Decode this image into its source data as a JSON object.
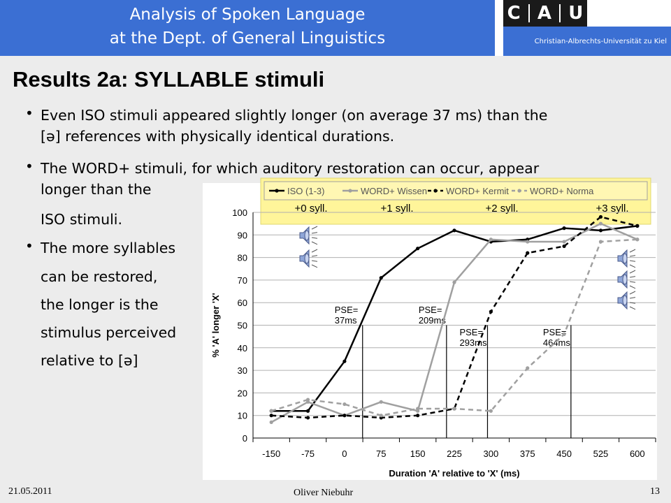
{
  "header": {
    "line1": "Analysis of Spoken Language",
    "line2": "at the Dept. of General Linguistics",
    "logo_letters": [
      "C",
      "A",
      "U"
    ],
    "university": "Christian-Albrechts-Universität zu Kiel"
  },
  "slide": {
    "title": "Results 2a: SYLLABLE stimuli",
    "bullet1_line1": "Even ISO stimuli appeared slightly longer (on average 37 ms) than the",
    "bullet1_line2": "[ə] references with physically identical durations.",
    "bullet2_line1": "The WORD+ stimuli, for which auditory restoration can occur, appear",
    "bullet2_line2": "longer than the",
    "bullet2_line3": "ISO stimuli.",
    "bullet3_lines": [
      "The more syllables",
      "can be restored,",
      "the longer is the",
      "stimulus perceived",
      "relative to [ə]"
    ],
    "syll_labels": [
      "+0 syll.",
      "+1 syll.",
      "+2 syll.",
      "+3 syll."
    ]
  },
  "footer": {
    "date": "21.05.2011",
    "author": "Oliver Niebuhr",
    "page": "13"
  },
  "colors": {
    "header_blue": "#3b6fd3",
    "legend_highlight": "#fff59a",
    "series_iso": "#000000",
    "series_wissen": "#a0a0a0",
    "series_kermit": "#000000",
    "series_norma": "#a0a0a0"
  },
  "chart_data": {
    "type": "line",
    "xlabel": "Duration 'A' relative to 'X' (ms)",
    "ylabel": "% 'A' longer 'X'",
    "categories": [
      "-150",
      "-75",
      "0",
      "75",
      "150",
      "225",
      "300",
      "375",
      "450",
      "525",
      "600"
    ],
    "ylim": [
      0,
      100
    ],
    "yticks": [
      "0",
      "10",
      "20",
      "30",
      "40",
      "50",
      "60",
      "70",
      "80",
      "90",
      "100"
    ],
    "grid": true,
    "legend_position": "top",
    "series": [
      {
        "name": "ISO (1-3)",
        "color": "#000000",
        "dash": "solid",
        "values": [
          12,
          12,
          34,
          71,
          84,
          92,
          87,
          88,
          93,
          92,
          94
        ]
      },
      {
        "name": "WORD+ Wissen",
        "color": "#a0a0a0",
        "dash": "solid",
        "values": [
          7,
          16,
          10,
          16,
          12,
          69,
          88,
          87,
          87,
          95,
          88
        ]
      },
      {
        "name": "WORD+ Kermit",
        "color": "#000000",
        "dash": "dashed",
        "values": [
          10,
          9,
          10,
          9,
          10,
          13,
          56,
          82,
          85,
          98,
          94
        ]
      },
      {
        "name": "WORD+ Norma",
        "color": "#a0a0a0",
        "dash": "dashed",
        "values": [
          12,
          17,
          15,
          10,
          13,
          13,
          12,
          31,
          46,
          87,
          88
        ]
      }
    ],
    "pse_labels": [
      {
        "line1": "PSE=",
        "line2": "37ms",
        "x_value": 37
      },
      {
        "line1": "PSE=",
        "line2": "209ms",
        "x_value": 209
      },
      {
        "line1": "PSE=",
        "line2": "293ms",
        "x_value": 293
      },
      {
        "line1": "PSE=",
        "line2": "464ms",
        "x_value": 464
      }
    ]
  }
}
